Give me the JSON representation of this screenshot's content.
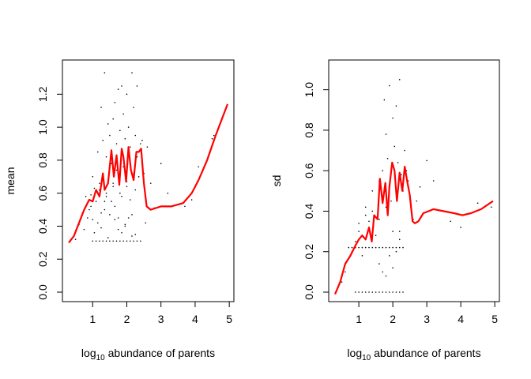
{
  "chart_data": [
    {
      "type": "scatter",
      "xlabel": {
        "base": "log",
        "sub": "10",
        "rest": " abundance of parents"
      },
      "ylabel": "mean",
      "xlim": [
        0.3,
        4.95
      ],
      "ylim": [
        0,
        1.35
      ],
      "x_ticks": [
        1,
        2,
        3,
        4,
        5
      ],
      "y_ticks": [
        0.0,
        0.2,
        0.4,
        0.6,
        0.8,
        1.0,
        1.2
      ],
      "y_tick_labels": [
        "0.0",
        "0.2",
        "0.4",
        "0.6",
        "0.8",
        "1.0",
        "1.2"
      ],
      "series": [
        {
          "style": "points",
          "color": "#000000",
          "x": [
            0.35,
            0.5,
            0.6,
            0.7,
            0.8,
            0.9,
            0.95,
            1.0,
            1.0,
            1.05,
            1.1,
            1.15,
            1.2,
            1.25,
            1.25,
            1.3,
            1.3,
            1.35,
            1.35,
            1.4,
            1.4,
            1.45,
            1.45,
            1.5,
            1.5,
            1.55,
            1.6,
            1.6,
            1.65,
            1.65,
            1.7,
            1.7,
            1.75,
            1.75,
            1.8,
            1.8,
            1.85,
            1.85,
            1.9,
            1.9,
            1.95,
            1.95,
            2.0,
            2.0,
            2.05,
            2.05,
            2.1,
            2.1,
            2.15,
            2.15,
            2.2,
            2.2,
            2.25,
            2.25,
            2.3,
            2.3,
            2.35,
            2.4,
            2.45,
            2.5,
            2.55,
            2.6,
            2.7,
            2.8,
            3.0,
            3.2,
            3.7,
            3.9,
            4.1,
            4.5,
            4.55,
            0.75,
            0.85,
            0.95,
            1.05,
            1.15,
            1.25,
            1.35,
            1.45,
            1.55,
            1.65,
            1.75,
            1.85,
            1.95,
            2.05,
            2.15,
            2.25,
            1.0,
            1.1,
            1.2,
            1.3,
            1.4,
            1.5,
            1.6,
            1.7,
            1.8,
            1.9,
            2.0,
            2.1,
            2.2,
            2.3,
            2.4,
            1.2,
            1.4,
            1.6,
            1.8,
            2.0,
            2.2
          ],
          "y": [
            0.31,
            0.32,
            0.41,
            0.48,
            0.58,
            0.5,
            0.59,
            0.7,
            0.44,
            0.63,
            0.55,
            0.85,
            0.66,
            0.48,
            1.12,
            0.92,
            0.72,
            0.55,
            1.33,
            0.82,
            0.6,
            1.02,
            0.66,
            0.95,
            0.47,
            0.78,
            1.05,
            0.64,
            1.15,
            0.52,
            0.9,
            0.74,
            1.23,
            0.45,
            0.98,
            0.68,
            1.25,
            0.58,
            1.08,
            0.76,
            0.93,
            0.41,
            1.2,
            0.67,
            1.0,
            0.84,
            0.88,
            0.56,
            1.33,
            0.47,
            1.12,
            0.72,
            0.95,
            0.62,
            1.25,
            0.82,
            0.7,
            0.9,
            0.92,
            0.72,
            0.42,
            0.88,
            0.66,
            0.51,
            0.78,
            0.6,
            0.52,
            0.56,
            0.76,
            0.93,
            0.95,
            0.38,
            0.45,
            0.52,
            0.36,
            0.42,
            0.39,
            0.5,
            0.33,
            0.55,
            0.44,
            0.38,
            0.36,
            0.4,
            0.45,
            0.34,
            0.35,
            0.31,
            0.31,
            0.31,
            0.31,
            0.31,
            0.31,
            0.31,
            0.31,
            0.31,
            0.31,
            0.31,
            0.31,
            0.31,
            0.31,
            0.31,
            0.62,
            0.58,
            0.66,
            0.6,
            0.64,
            0.68
          ]
        },
        {
          "style": "line",
          "color": "#ff0000",
          "x": [
            0.3,
            0.45,
            0.6,
            0.75,
            0.9,
            1.0,
            1.1,
            1.2,
            1.3,
            1.35,
            1.45,
            1.55,
            1.62,
            1.7,
            1.78,
            1.85,
            1.9,
            1.98,
            2.05,
            2.12,
            2.2,
            2.28,
            2.35,
            2.42,
            2.5,
            2.58,
            2.7,
            2.85,
            3.0,
            3.3,
            3.65,
            3.9,
            4.1,
            4.35,
            4.6,
            4.95
          ],
          "y": [
            0.3,
            0.34,
            0.42,
            0.5,
            0.56,
            0.55,
            0.62,
            0.58,
            0.72,
            0.62,
            0.66,
            0.86,
            0.7,
            0.83,
            0.65,
            0.87,
            0.82,
            0.67,
            0.88,
            0.74,
            0.68,
            0.85,
            0.85,
            0.87,
            0.66,
            0.52,
            0.5,
            0.51,
            0.52,
            0.52,
            0.54,
            0.6,
            0.68,
            0.8,
            0.95,
            1.14
          ]
        }
      ]
    },
    {
      "type": "scatter",
      "xlabel": {
        "base": "log",
        "sub": "10",
        "rest": " abundance of parents"
      },
      "ylabel": "sd",
      "xlim": [
        0.3,
        4.95
      ],
      "ylim": [
        0,
        1.1
      ],
      "x_ticks": [
        1,
        2,
        3,
        4,
        5
      ],
      "y_ticks": [
        0.0,
        0.2,
        0.4,
        0.6,
        0.8,
        1.0
      ],
      "y_tick_labels": [
        "0.0",
        "0.2",
        "0.4",
        "0.6",
        "0.8",
        "1.0"
      ],
      "series": [
        {
          "style": "points",
          "color": "#000000",
          "x": [
            0.5,
            0.6,
            0.7,
            0.8,
            0.9,
            1.0,
            1.1,
            1.2,
            1.3,
            1.4,
            1.5,
            1.6,
            1.7,
            1.75,
            1.8,
            1.85,
            1.9,
            1.95,
            2.0,
            2.05,
            2.1,
            2.15,
            2.2,
            2.25,
            2.3,
            2.35,
            2.4,
            2.45,
            2.5,
            2.6,
            2.7,
            2.8,
            3.0,
            3.2,
            3.7,
            4.0,
            4.5,
            4.9,
            0.8,
            0.9,
            1.0,
            1.1,
            1.2,
            1.3,
            1.4,
            1.5,
            1.6,
            1.7,
            1.8,
            1.9,
            2.0,
            2.1,
            2.2,
            2.3,
            0.9,
            1.0,
            1.1,
            1.2,
            1.3,
            1.4,
            1.5,
            1.6,
            1.7,
            1.8,
            1.9,
            2.0,
            2.1,
            2.2,
            2.3,
            1.6,
            1.7,
            1.8,
            1.9,
            2.0,
            2.1,
            2.2,
            1.0,
            1.2,
            1.4,
            1.6,
            1.8,
            2.0,
            2.2
          ],
          "y": [
            0.05,
            0.1,
            0.22,
            0.2,
            0.25,
            0.3,
            0.18,
            0.42,
            0.35,
            0.5,
            0.28,
            0.55,
            0.6,
            0.95,
            0.78,
            0.66,
            1.02,
            0.45,
            0.86,
            0.72,
            0.92,
            0.64,
            1.05,
            0.58,
            0.5,
            0.7,
            0.6,
            0.55,
            0.48,
            0.36,
            0.45,
            0.52,
            0.65,
            0.55,
            0.35,
            0.32,
            0.44,
            0.42,
            0.22,
            0.22,
            0.22,
            0.22,
            0.22,
            0.22,
            0.22,
            0.22,
            0.22,
            0.22,
            0.22,
            0.22,
            0.22,
            0.22,
            0.22,
            0.22,
            0.0,
            0.0,
            0.0,
            0.0,
            0.0,
            0.0,
            0.0,
            0.0,
            0.0,
            0.0,
            0.0,
            0.0,
            0.0,
            0.0,
            0.0,
            0.14,
            0.1,
            0.08,
            0.18,
            0.12,
            0.2,
            0.3,
            0.34,
            0.38,
            0.4,
            0.36,
            0.42,
            0.3,
            0.26
          ]
        },
        {
          "style": "line",
          "color": "#ff0000",
          "x": [
            0.3,
            0.45,
            0.6,
            0.75,
            0.9,
            1.0,
            1.1,
            1.2,
            1.3,
            1.38,
            1.45,
            1.55,
            1.62,
            1.7,
            1.78,
            1.85,
            1.9,
            1.98,
            2.05,
            2.12,
            2.2,
            2.28,
            2.35,
            2.42,
            2.5,
            2.58,
            2.65,
            2.75,
            2.9,
            3.05,
            3.2,
            3.5,
            3.8,
            4.05,
            4.3,
            4.6,
            4.95
          ],
          "y": [
            -0.01,
            0.05,
            0.14,
            0.18,
            0.23,
            0.26,
            0.28,
            0.26,
            0.32,
            0.25,
            0.38,
            0.36,
            0.56,
            0.44,
            0.54,
            0.38,
            0.52,
            0.64,
            0.6,
            0.45,
            0.59,
            0.5,
            0.62,
            0.55,
            0.48,
            0.35,
            0.34,
            0.35,
            0.39,
            0.4,
            0.41,
            0.4,
            0.39,
            0.38,
            0.39,
            0.41,
            0.45
          ]
        }
      ]
    }
  ]
}
